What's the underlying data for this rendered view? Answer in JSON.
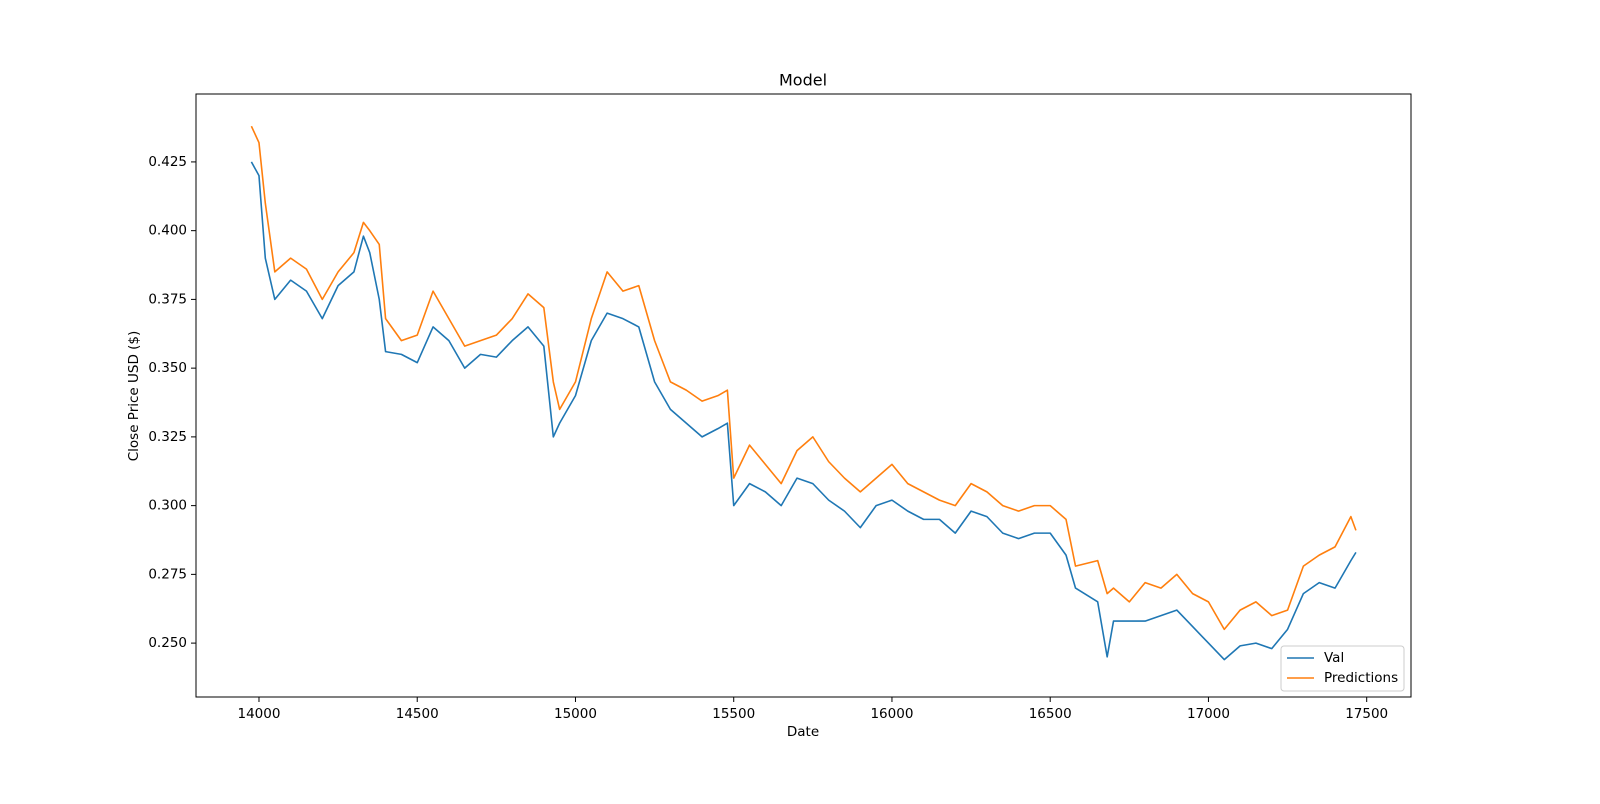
{
  "chart_data": {
    "type": "line",
    "title": "Model",
    "x_label": "Date",
    "y_label": "Close Price USD ($)",
    "x": [
      13976,
      14000,
      14020,
      14050,
      14100,
      14150,
      14200,
      14250,
      14300,
      14330,
      14350,
      14380,
      14400,
      14450,
      14500,
      14550,
      14600,
      14650,
      14700,
      14750,
      14800,
      14850,
      14900,
      14930,
      14950,
      15000,
      15050,
      15100,
      15150,
      15200,
      15250,
      15300,
      15350,
      15400,
      15450,
      15480,
      15500,
      15550,
      15600,
      15650,
      15700,
      15750,
      15800,
      15850,
      15900,
      15950,
      16000,
      16050,
      16100,
      16150,
      16200,
      16250,
      16300,
      16350,
      16400,
      16450,
      16500,
      16550,
      16580,
      16650,
      16680,
      16700,
      16750,
      16800,
      16850,
      16900,
      16950,
      17000,
      17050,
      17100,
      17150,
      17200,
      17250,
      17300,
      17350,
      17400,
      17450,
      17466
    ],
    "series": [
      {
        "name": "Val",
        "color": "#1f77b4",
        "values": [
          0.425,
          0.42,
          0.39,
          0.375,
          0.382,
          0.378,
          0.368,
          0.38,
          0.385,
          0.398,
          0.392,
          0.375,
          0.356,
          0.355,
          0.352,
          0.365,
          0.36,
          0.35,
          0.355,
          0.354,
          0.36,
          0.365,
          0.358,
          0.325,
          0.33,
          0.34,
          0.36,
          0.37,
          0.368,
          0.365,
          0.345,
          0.335,
          0.33,
          0.325,
          0.328,
          0.33,
          0.3,
          0.308,
          0.305,
          0.3,
          0.31,
          0.308,
          0.302,
          0.298,
          0.292,
          0.3,
          0.302,
          0.298,
          0.295,
          0.295,
          0.29,
          0.298,
          0.296,
          0.29,
          0.288,
          0.29,
          0.29,
          0.282,
          0.27,
          0.265,
          0.245,
          0.258,
          0.258,
          0.258,
          0.26,
          0.262,
          0.256,
          0.25,
          0.244,
          0.249,
          0.25,
          0.248,
          0.255,
          0.268,
          0.272,
          0.27,
          0.28,
          0.283
        ]
      },
      {
        "name": "Predictions",
        "color": "#ff7f0e",
        "values": [
          0.438,
          0.432,
          0.41,
          0.385,
          0.39,
          0.386,
          0.375,
          0.385,
          0.392,
          0.403,
          0.4,
          0.395,
          0.368,
          0.36,
          0.362,
          0.378,
          0.368,
          0.358,
          0.36,
          0.362,
          0.368,
          0.377,
          0.372,
          0.345,
          0.335,
          0.345,
          0.368,
          0.385,
          0.378,
          0.38,
          0.36,
          0.345,
          0.342,
          0.338,
          0.34,
          0.342,
          0.31,
          0.322,
          0.315,
          0.308,
          0.32,
          0.325,
          0.316,
          0.31,
          0.305,
          0.31,
          0.315,
          0.308,
          0.305,
          0.302,
          0.3,
          0.308,
          0.305,
          0.3,
          0.298,
          0.3,
          0.3,
          0.295,
          0.278,
          0.28,
          0.268,
          0.27,
          0.265,
          0.272,
          0.27,
          0.275,
          0.268,
          0.265,
          0.255,
          0.262,
          0.265,
          0.26,
          0.262,
          0.278,
          0.282,
          0.285,
          0.296,
          0.291
        ]
      }
    ],
    "xlim": [
      13801,
      17640
    ],
    "ylim": [
      0.2304,
      0.4497
    ],
    "xticks": [
      14000,
      14500,
      15000,
      15500,
      16000,
      16500,
      17000,
      17500
    ],
    "yticks": [
      {
        "value": 0.25,
        "label": "0.250"
      },
      0.275,
      {
        "value": 0.3,
        "label": "0.300"
      },
      0.325,
      {
        "value": 0.35,
        "label": "0.350"
      },
      0.375,
      {
        "value": 0.4,
        "label": "0.400"
      },
      0.425
    ],
    "grid": false,
    "legend_position": "lower right"
  }
}
